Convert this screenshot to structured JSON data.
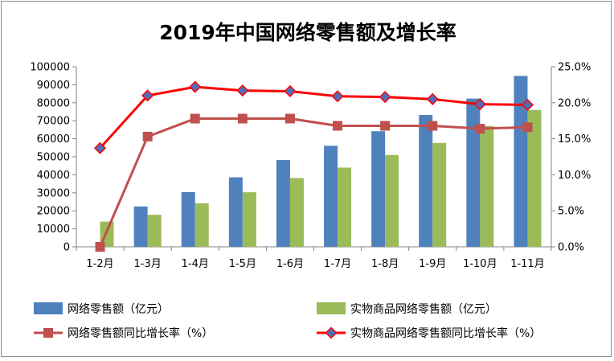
{
  "chart_data": {
    "type": "bar",
    "title": "2019年中国网络零售额及增长率",
    "categories": [
      "1-2月",
      "1-3月",
      "1-4月",
      "1-5月",
      "1-6月",
      "1-7月",
      "1-8月",
      "1-9月",
      "1-10月",
      "1-11月"
    ],
    "series": [
      {
        "name": "网络零售额（亿元）",
        "type": "bar",
        "axis": "left",
        "color": "#4f81bd",
        "values": [
          null,
          22400,
          30400,
          38600,
          48200,
          56100,
          64200,
          73200,
          82300,
          94900
        ]
      },
      {
        "name": "实物商品网络零售额（亿元）",
        "type": "bar",
        "axis": "left",
        "color": "#9bbb59",
        "values": [
          14000,
          17800,
          24200,
          30300,
          38200,
          44000,
          51000,
          57700,
          67100,
          76000
        ]
      },
      {
        "name": "网络零售额同比增长率（%）",
        "type": "line",
        "axis": "right",
        "color": "#c0504d",
        "marker": "square",
        "values": [
          0.0,
          15.3,
          17.8,
          17.8,
          17.8,
          16.8,
          16.8,
          16.8,
          16.4,
          16.6
        ]
      },
      {
        "name": "实物商品网络零售额同比增长率（%）",
        "type": "line",
        "axis": "right",
        "color": "#ff0000",
        "marker": "diamond",
        "marker_color": "#4f6fbd",
        "values": [
          13.7,
          21.0,
          22.2,
          21.7,
          21.6,
          20.9,
          20.8,
          20.5,
          19.8,
          19.7
        ]
      }
    ],
    "y_left": {
      "ylim": [
        0,
        100000
      ],
      "ticks": [
        "0",
        "10000",
        "20000",
        "30000",
        "40000",
        "50000",
        "60000",
        "70000",
        "80000",
        "90000",
        "100000"
      ]
    },
    "y_right": {
      "ylim": [
        0,
        25
      ],
      "ticks": [
        "0.0%",
        "5.0%",
        "10.0%",
        "15.0%",
        "20.0%",
        "25.0%"
      ]
    },
    "grid": false,
    "legend": "bottom"
  }
}
